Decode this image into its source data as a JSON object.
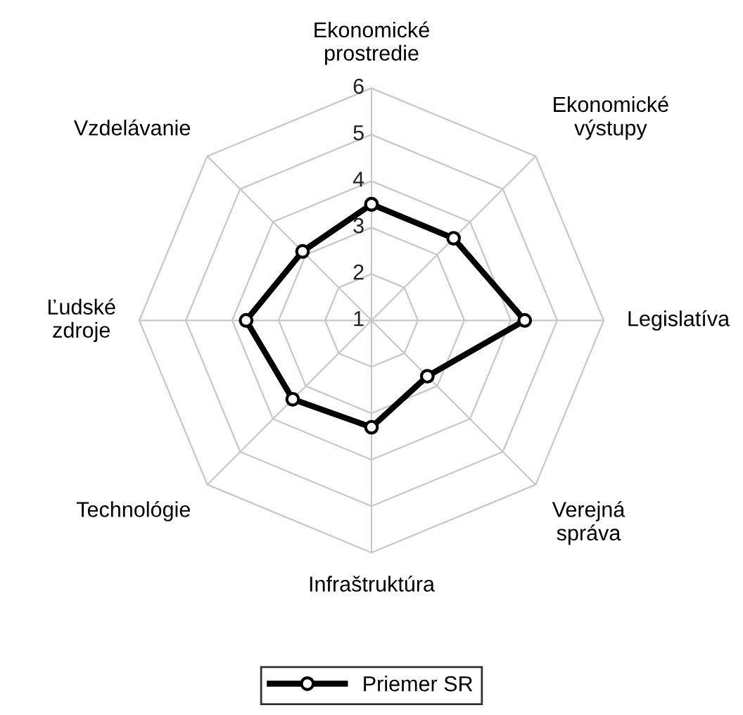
{
  "chart_data": {
    "type": "radar",
    "categories": [
      "Ekonomické\nprostredie",
      "Ekonomické\nvýstupy",
      "Legislatíva",
      "Verejná\nspráva",
      "Infraštruktúra",
      "Technológie",
      "Ľudské\nzdroje",
      "Vzdelávanie"
    ],
    "series": [
      {
        "name": "Priemer SR",
        "color": "#000000",
        "values": [
          3.5,
          3.5,
          4.3,
          2.7,
          3.3,
          3.4,
          3.7,
          3.1
        ]
      }
    ],
    "ylim": [
      1,
      6
    ],
    "yticks": [
      1,
      2,
      3,
      4,
      5,
      6
    ],
    "grid": true,
    "legend": "bottom",
    "marker": "circle",
    "line_style": "solid"
  }
}
